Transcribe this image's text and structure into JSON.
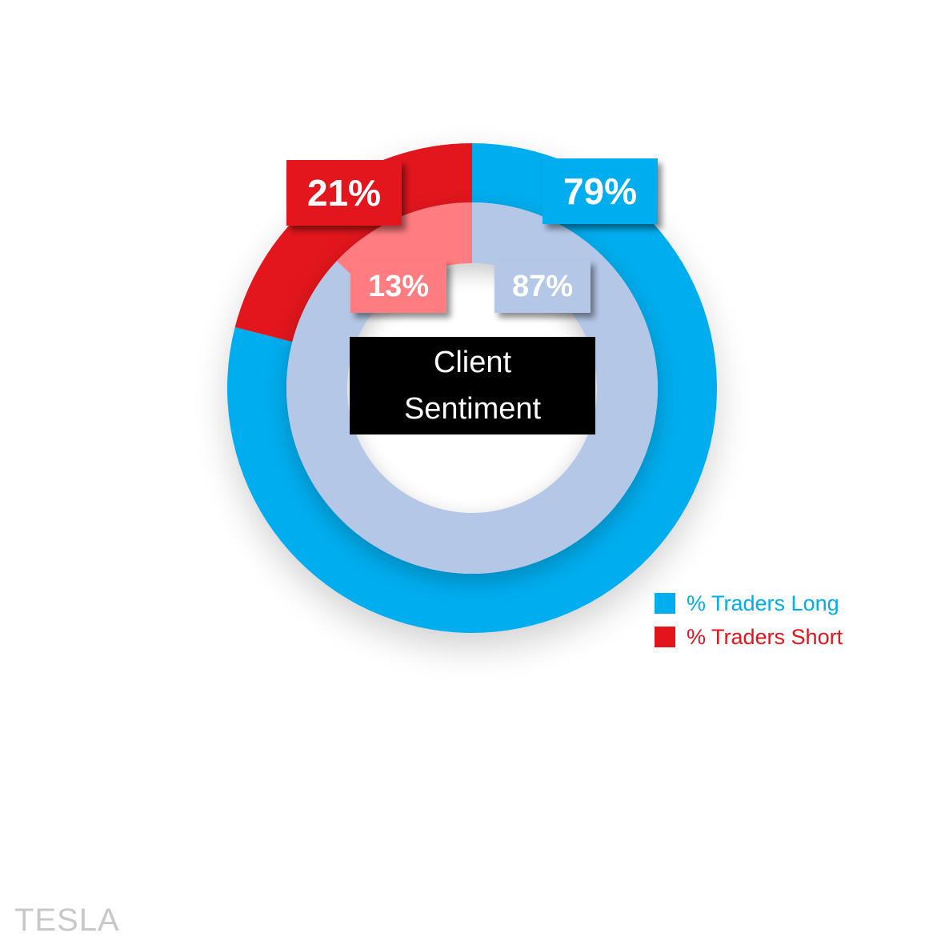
{
  "chart_data": {
    "type": "pie",
    "subtype": "double-donut",
    "center_title_lines": [
      "Client",
      "Sentiment"
    ],
    "rings": [
      {
        "ring": "outer",
        "slices": [
          {
            "label": "% Traders Long",
            "value": 79,
            "display": "79%",
            "color": "#00adee"
          },
          {
            "label": "% Traders Short",
            "value": 21,
            "display": "21%",
            "color": "#e2141c"
          }
        ]
      },
      {
        "ring": "inner",
        "slices": [
          {
            "label": "% Traders Long",
            "value": 87,
            "display": "87%",
            "color": "#b4c7e7"
          },
          {
            "label": "% Traders Short",
            "value": 13,
            "display": "13%",
            "color": "#ff7c80"
          }
        ]
      }
    ],
    "legend": {
      "placement": "bottom-right",
      "entries": [
        {
          "label": "% Traders Long",
          "color": "#00adee",
          "text_color": "#00adee"
        },
        {
          "label": "% Traders Short",
          "color": "#e2141c",
          "text_color": "#e2141c"
        }
      ]
    }
  },
  "watermark": "TESLA"
}
